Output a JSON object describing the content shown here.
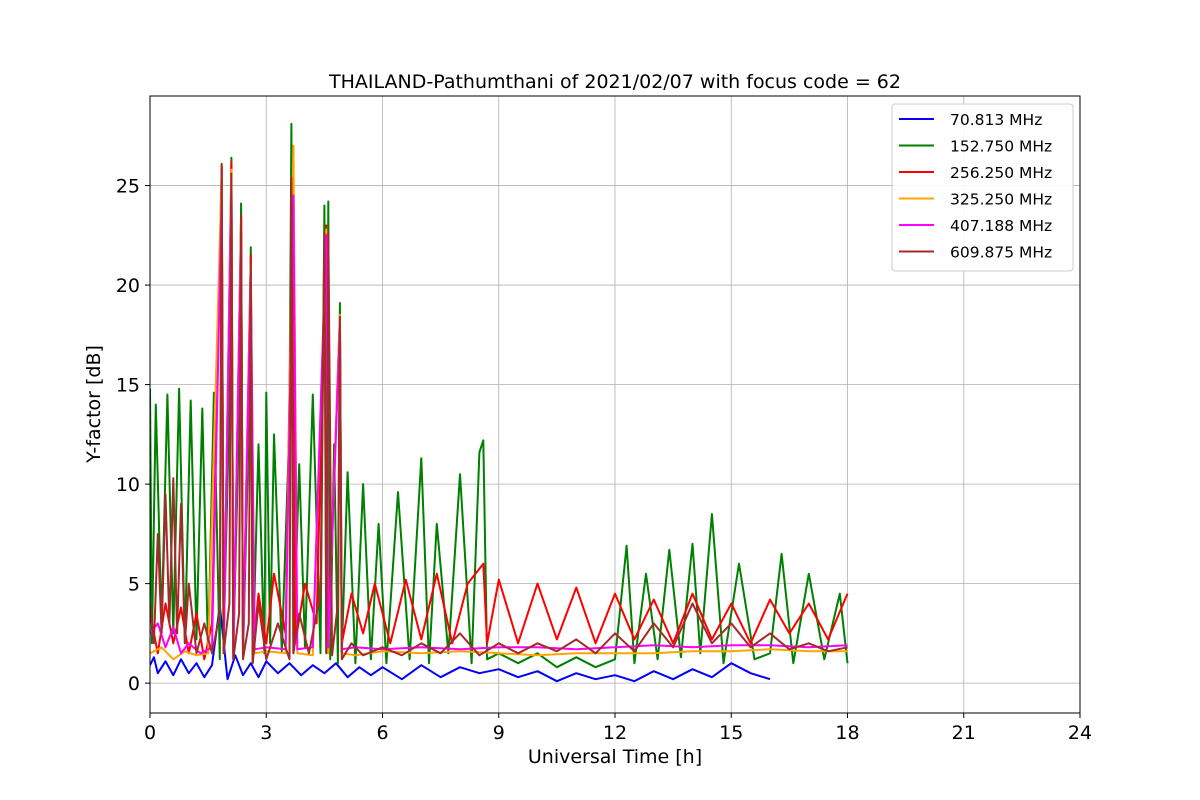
{
  "chart_data": {
    "type": "line",
    "title": "THAILAND-Pathumthani of 2021/02/07 with focus code = 62",
    "xlabel": "Universal Time [h]",
    "ylabel": "Y-factor [dB]",
    "xlim": [
      0,
      24
    ],
    "ylim": [
      -1.5,
      29.5
    ],
    "xticks": [
      0,
      3,
      6,
      9,
      12,
      15,
      18,
      21,
      24
    ],
    "yticks": [
      0,
      5,
      10,
      15,
      20,
      25
    ],
    "grid": true,
    "legend_position": "top-right",
    "series": [
      {
        "name": " 70.813 MHz",
        "color": "#0000ff",
        "x": [
          0,
          0.1,
          0.2,
          0.4,
          0.6,
          0.8,
          1.0,
          1.2,
          1.4,
          1.6,
          1.8,
          2.0,
          2.2,
          2.4,
          2.6,
          2.8,
          3.0,
          3.3,
          3.6,
          3.9,
          4.2,
          4.5,
          4.8,
          5.1,
          5.4,
          5.7,
          6.0,
          6.5,
          7.0,
          7.5,
          8.0,
          8.5,
          9.0,
          9.5,
          10.0,
          10.5,
          11.0,
          11.5,
          12.0,
          12.5,
          13.0,
          13.5,
          14.0,
          14.5,
          15.0,
          15.5,
          16.0
        ],
        "y": [
          0.9,
          1.3,
          0.5,
          1.1,
          0.4,
          1.2,
          0.5,
          1.0,
          0.3,
          0.9,
          3.9,
          0.2,
          1.4,
          0.4,
          1.0,
          0.3,
          1.1,
          0.5,
          1.0,
          0.4,
          0.9,
          0.5,
          1.0,
          0.3,
          0.8,
          0.4,
          0.8,
          0.2,
          0.9,
          0.3,
          0.8,
          0.5,
          0.7,
          0.3,
          0.6,
          0.1,
          0.5,
          0.2,
          0.4,
          0.1,
          0.6,
          0.2,
          0.7,
          0.3,
          1.0,
          0.5,
          0.2
        ]
      },
      {
        "name": "152.750 MHz",
        "color": "#008000",
        "x": [
          0,
          0.05,
          0.15,
          0.3,
          0.45,
          0.6,
          0.75,
          0.9,
          1.05,
          1.2,
          1.35,
          1.5,
          1.65,
          1.8,
          1.85,
          1.9,
          2.05,
          2.1,
          2.15,
          2.3,
          2.35,
          2.4,
          2.55,
          2.6,
          2.65,
          2.8,
          2.95,
          3.0,
          3.1,
          3.2,
          3.4,
          3.6,
          3.65,
          3.7,
          3.85,
          4.0,
          4.2,
          4.4,
          4.5,
          4.55,
          4.6,
          4.65,
          4.75,
          4.85,
          4.9,
          4.95,
          5.1,
          5.3,
          5.5,
          5.7,
          5.9,
          6.1,
          6.4,
          6.7,
          7.0,
          7.2,
          7.4,
          7.7,
          8.0,
          8.3,
          8.5,
          8.6,
          8.7,
          9.0,
          9.5,
          10.0,
          10.5,
          11.0,
          11.5,
          12.0,
          12.3,
          12.5,
          12.8,
          13.1,
          13.4,
          13.7,
          14.0,
          14.2,
          14.5,
          14.8,
          15.2,
          15.6,
          16.0,
          16.3,
          16.6,
          17.0,
          17.4,
          17.8,
          18.0
        ],
        "y": [
          14.8,
          2.0,
          14.0,
          3.0,
          14.5,
          2.5,
          14.8,
          2.0,
          14.2,
          2.2,
          13.8,
          1.5,
          14.6,
          1.2,
          26.1,
          2.0,
          14.0,
          26.4,
          1.5,
          13.5,
          24.1,
          1.3,
          13.0,
          21.9,
          1.0,
          12.0,
          1.5,
          14.6,
          2.0,
          12.5,
          1.6,
          13.0,
          28.1,
          1.5,
          11.0,
          1.8,
          14.5,
          1.5,
          24.0,
          1.5,
          24.2,
          1.2,
          12.0,
          1.0,
          19.1,
          1.5,
          10.6,
          1.0,
          10.0,
          1.2,
          8.0,
          1.0,
          9.6,
          1.2,
          11.3,
          1.0,
          8.0,
          1.5,
          10.5,
          1.0,
          11.6,
          12.2,
          1.2,
          1.5,
          1.0,
          1.5,
          0.8,
          1.3,
          0.8,
          1.2,
          6.9,
          1.0,
          5.5,
          1.2,
          6.7,
          1.3,
          7.0,
          1.5,
          8.5,
          1.0,
          6.0,
          1.2,
          1.5,
          6.5,
          1.0,
          5.5,
          1.2,
          4.5,
          1.0
        ]
      },
      {
        "name": "256.250 MHz",
        "color": "#ff0000",
        "x": [
          0,
          0.2,
          0.4,
          0.6,
          0.8,
          1.0,
          1.2,
          1.4,
          1.6,
          1.85,
          1.9,
          2.1,
          2.15,
          2.35,
          2.4,
          2.6,
          2.65,
          2.8,
          3.0,
          3.2,
          3.5,
          3.7,
          3.75,
          4.0,
          4.3,
          4.55,
          4.6,
          4.9,
          4.95,
          5.2,
          5.5,
          5.8,
          6.2,
          6.6,
          7.0,
          7.4,
          7.8,
          8.2,
          8.6,
          8.7,
          9.0,
          9.5,
          10.0,
          10.5,
          11.0,
          11.5,
          12.0,
          12.5,
          13.0,
          13.5,
          14.0,
          14.5,
          15.0,
          15.5,
          16.0,
          16.5,
          17.0,
          17.5,
          18.0
        ],
        "y": [
          3.5,
          1.5,
          4.0,
          2.0,
          3.8,
          1.5,
          3.5,
          1.2,
          3.0,
          26.0,
          1.5,
          26.2,
          1.2,
          23.5,
          1.5,
          21.5,
          1.5,
          4.5,
          2.0,
          5.5,
          2.5,
          27.0,
          2.0,
          5.0,
          3.0,
          23.0,
          2.0,
          18.5,
          2.0,
          4.5,
          2.5,
          5.0,
          2.0,
          5.2,
          2.2,
          5.5,
          2.0,
          5.0,
          6.0,
          2.0,
          5.2,
          2.0,
          5.0,
          2.2,
          4.8,
          2.0,
          4.5,
          2.2,
          4.2,
          2.0,
          4.5,
          2.2,
          4.0,
          2.0,
          4.2,
          2.5,
          4.0,
          2.2,
          4.5
        ]
      },
      {
        "name": "325.250 MHz",
        "color": "#ffa500",
        "x": [
          0,
          0.3,
          0.6,
          0.9,
          1.2,
          1.5,
          1.85,
          1.9,
          2.1,
          2.15,
          2.35,
          2.4,
          2.6,
          2.7,
          3.0,
          3.5,
          3.7,
          3.8,
          4.2,
          4.55,
          4.6,
          4.9,
          4.95,
          5.3,
          6.0,
          7.0,
          8.0,
          9.0,
          10.0,
          11.0,
          12.0,
          13.0,
          14.0,
          15.0,
          16.0,
          17.0,
          18.0
        ],
        "y": [
          1.5,
          1.8,
          1.2,
          1.6,
          1.4,
          1.5,
          25.5,
          1.5,
          25.8,
          1.4,
          23.2,
          1.5,
          21.0,
          1.5,
          1.6,
          1.5,
          27.0,
          1.5,
          1.4,
          22.8,
          1.5,
          18.5,
          1.5,
          1.4,
          1.6,
          1.5,
          1.6,
          1.5,
          1.4,
          1.5,
          1.5,
          1.5,
          1.6,
          1.6,
          1.7,
          1.6,
          1.6
        ]
      },
      {
        "name": "407.188 MHz",
        "color": "#ff00ff",
        "x": [
          0,
          0.2,
          0.4,
          0.6,
          0.8,
          1.0,
          1.3,
          1.6,
          1.85,
          1.9,
          2.1,
          2.15,
          2.35,
          2.4,
          2.6,
          2.7,
          3.0,
          3.5,
          3.7,
          3.8,
          4.2,
          4.55,
          4.6,
          4.9,
          4.95,
          5.3,
          6.0,
          7.0,
          8.0,
          9.0,
          10.0,
          11.0,
          12.0,
          13.0,
          14.0,
          15.0,
          16.0,
          17.0,
          18.0
        ],
        "y": [
          2.5,
          3.0,
          1.8,
          2.8,
          1.5,
          2.0,
          1.5,
          1.8,
          24.5,
          1.6,
          25.0,
          1.6,
          22.5,
          1.7,
          20.5,
          1.7,
          1.8,
          1.7,
          24.5,
          1.7,
          1.8,
          22.5,
          1.8,
          18.0,
          1.7,
          1.8,
          1.7,
          1.8,
          1.7,
          1.8,
          1.8,
          1.7,
          1.8,
          1.9,
          1.8,
          1.9,
          1.9,
          1.8,
          1.9
        ]
      },
      {
        "name": "609.875 MHz",
        "color": "#a52a2a",
        "x": [
          0,
          0.1,
          0.2,
          0.3,
          0.4,
          0.5,
          0.6,
          0.7,
          0.8,
          0.9,
          1.0,
          1.2,
          1.4,
          1.6,
          1.8,
          1.85,
          1.9,
          2.05,
          2.1,
          2.15,
          2.3,
          2.35,
          2.4,
          2.55,
          2.6,
          2.65,
          2.8,
          3.0,
          3.3,
          3.6,
          3.65,
          3.7,
          3.85,
          4.1,
          4.4,
          4.5,
          4.55,
          4.6,
          4.7,
          4.85,
          4.9,
          4.95,
          5.2,
          5.5,
          6.0,
          6.5,
          7.0,
          7.5,
          8.0,
          8.5,
          9.0,
          9.5,
          10.0,
          10.5,
          11.0,
          11.5,
          12.0,
          12.5,
          13.0,
          13.5,
          14.0,
          14.5,
          15.0,
          15.5,
          16.0,
          16.5,
          17.0,
          17.5,
          18.0
        ],
        "y": [
          4.0,
          2.0,
          7.5,
          2.5,
          9.5,
          3.0,
          10.3,
          2.5,
          9.0,
          2.0,
          5.0,
          1.5,
          3.0,
          1.5,
          3.5,
          25.8,
          1.5,
          4.0,
          25.6,
          1.2,
          3.5,
          23.5,
          1.2,
          3.0,
          21.2,
          1.0,
          4.0,
          1.2,
          3.0,
          1.2,
          25.4,
          1.5,
          3.5,
          1.5,
          4.5,
          22.6,
          1.5,
          22.6,
          1.4,
          4.0,
          18.4,
          1.2,
          2.0,
          1.4,
          1.8,
          1.4,
          2.0,
          1.5,
          2.5,
          1.4,
          2.0,
          1.5,
          2.0,
          1.6,
          2.2,
          1.5,
          2.5,
          1.6,
          3.0,
          1.8,
          4.0,
          2.0,
          3.0,
          1.8,
          2.5,
          1.7,
          2.0,
          1.6,
          1.8
        ]
      }
    ]
  }
}
